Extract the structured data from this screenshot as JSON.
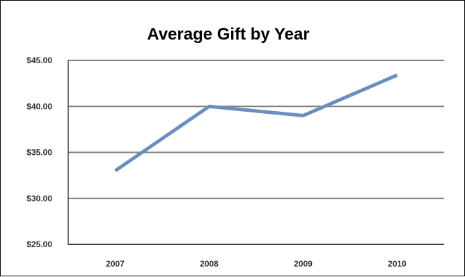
{
  "chart_data": {
    "type": "line",
    "title": "Average Gift by Year",
    "xlabel": "",
    "ylabel": "",
    "categories": [
      "2007",
      "2008",
      "2009",
      "2010"
    ],
    "series": [
      {
        "values": [
          33.0,
          40.0,
          39.0,
          43.4
        ]
      }
    ],
    "ylim": [
      25,
      45
    ],
    "yticks": [
      25,
      30,
      35,
      40,
      45
    ],
    "ytick_labels": [
      "$25.00",
      "$30.00",
      "$35.00",
      "$40.00",
      "$45.00"
    ],
    "grid": true,
    "legend": "none",
    "colors": {
      "line": "#6a8fbd",
      "grid": "#7f7f7f",
      "axis": "#404040"
    }
  }
}
